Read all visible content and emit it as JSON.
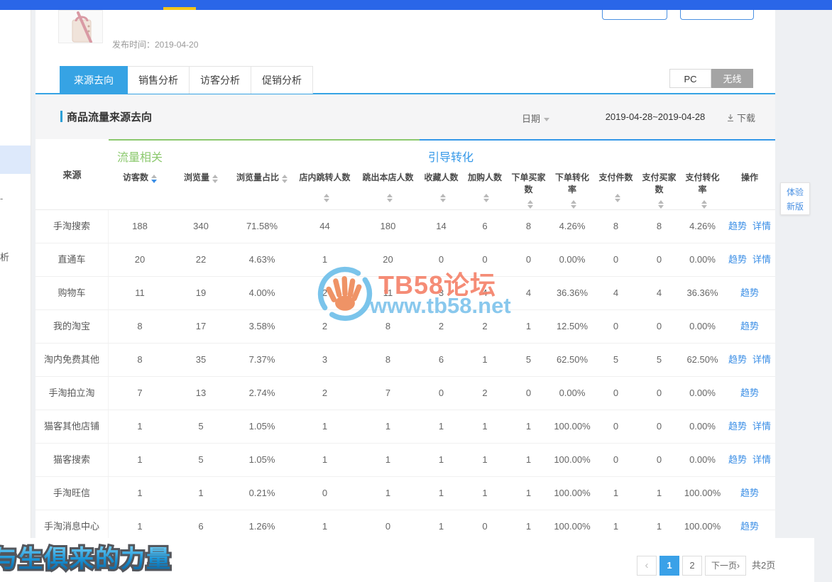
{
  "product": {
    "publish": "发布时间：2019-04-20"
  },
  "tabs": {
    "items": [
      "来源去向",
      "销售分析",
      "访客分析",
      "促销分析"
    ],
    "active_index": 0
  },
  "device_toggle": {
    "options": [
      "PC",
      "无线"
    ],
    "active": "无线"
  },
  "panel": {
    "title": "商品流量来源去向",
    "date_label": "日期",
    "date_range": "2019-04-28~2019-04-28",
    "download_label": "下载"
  },
  "table": {
    "source_header": "来源",
    "groups": [
      {
        "label": "流量相关",
        "accent": "#8cc96e",
        "columns": [
          "访客数",
          "浏览量",
          "浏览量占比",
          "店内跳转人数",
          "跳出本店人数"
        ]
      },
      {
        "label": "引导转化",
        "accent": "#3498e8",
        "columns": [
          "收藏人数",
          "加购人数",
          "下单买家数",
          "下单转化率",
          "支付件数",
          "支付买家数",
          "支付转化率"
        ]
      }
    ],
    "action_header": "操作",
    "sorted_column": "访客数",
    "sorted_direction": "desc",
    "rows": [
      {
        "source": "手淘搜索",
        "values": [
          "188",
          "340",
          "71.58%",
          "44",
          "180",
          "14",
          "6",
          "8",
          "4.26%",
          "8",
          "8",
          "4.26%"
        ],
        "actions": [
          "趋势",
          "详情"
        ]
      },
      {
        "source": "直通车",
        "values": [
          "20",
          "22",
          "4.63%",
          "1",
          "20",
          "0",
          "0",
          "0",
          "0.00%",
          "0",
          "0",
          "0.00%"
        ],
        "actions": [
          "趋势",
          "详情"
        ]
      },
      {
        "source": "购物车",
        "values": [
          "11",
          "19",
          "4.00%",
          "2",
          "11",
          "3",
          "4",
          "4",
          "36.36%",
          "4",
          "4",
          "36.36%"
        ],
        "actions": [
          "趋势"
        ]
      },
      {
        "source": "我的淘宝",
        "values": [
          "8",
          "17",
          "3.58%",
          "2",
          "8",
          "2",
          "2",
          "1",
          "12.50%",
          "0",
          "0",
          "0.00%"
        ],
        "actions": [
          "趋势"
        ]
      },
      {
        "source": "淘内免费其他",
        "values": [
          "8",
          "35",
          "7.37%",
          "3",
          "8",
          "6",
          "1",
          "5",
          "62.50%",
          "5",
          "5",
          "62.50%"
        ],
        "actions": [
          "趋势",
          "详情"
        ]
      },
      {
        "source": "手淘拍立淘",
        "values": [
          "7",
          "13",
          "2.74%",
          "2",
          "7",
          "0",
          "2",
          "0",
          "0.00%",
          "0",
          "0",
          "0.00%"
        ],
        "actions": [
          "趋势"
        ]
      },
      {
        "source": "猫客其他店铺",
        "values": [
          "1",
          "5",
          "1.05%",
          "1",
          "1",
          "1",
          "1",
          "1",
          "100.00%",
          "0",
          "0",
          "0.00%"
        ],
        "actions": [
          "趋势",
          "详情"
        ]
      },
      {
        "source": "猫客搜索",
        "values": [
          "1",
          "5",
          "1.05%",
          "1",
          "1",
          "1",
          "1",
          "1",
          "100.00%",
          "0",
          "0",
          "0.00%"
        ],
        "actions": [
          "趋势",
          "详情"
        ]
      },
      {
        "source": "手淘旺信",
        "values": [
          "1",
          "1",
          "0.21%",
          "0",
          "1",
          "1",
          "1",
          "1",
          "100.00%",
          "1",
          "1",
          "100.00%"
        ],
        "actions": [
          "趋势"
        ]
      },
      {
        "source": "手淘消息中心",
        "values": [
          "1",
          "6",
          "1.26%",
          "1",
          "0",
          "1",
          "0",
          "1",
          "100.00%",
          "1",
          "1",
          "100.00%"
        ],
        "actions": [
          "趋势"
        ]
      }
    ]
  },
  "watermark": {
    "title": "TB58论坛",
    "url": "www.tb58.net"
  },
  "bottom_logo": "与生俱来的力量",
  "pagination": {
    "prev": "‹",
    "pages": [
      "1",
      "2"
    ],
    "active": "1",
    "next": "下一页›",
    "total": "共2页"
  },
  "side_button": {
    "line1": "体验",
    "line2": "新版"
  },
  "sidebar": {
    "fragments": [
      "-",
      "析"
    ]
  },
  "colors": {
    "topbar": "#2a66e8",
    "tab_active": "#36a3e4",
    "group_flow": "#8cc96e",
    "group_convert": "#3498e8",
    "link": "#3a8ee6",
    "page_active": "#3aa1e8",
    "watermark_orange": "#f5836b",
    "watermark_blue": "#7fc4ec"
  }
}
